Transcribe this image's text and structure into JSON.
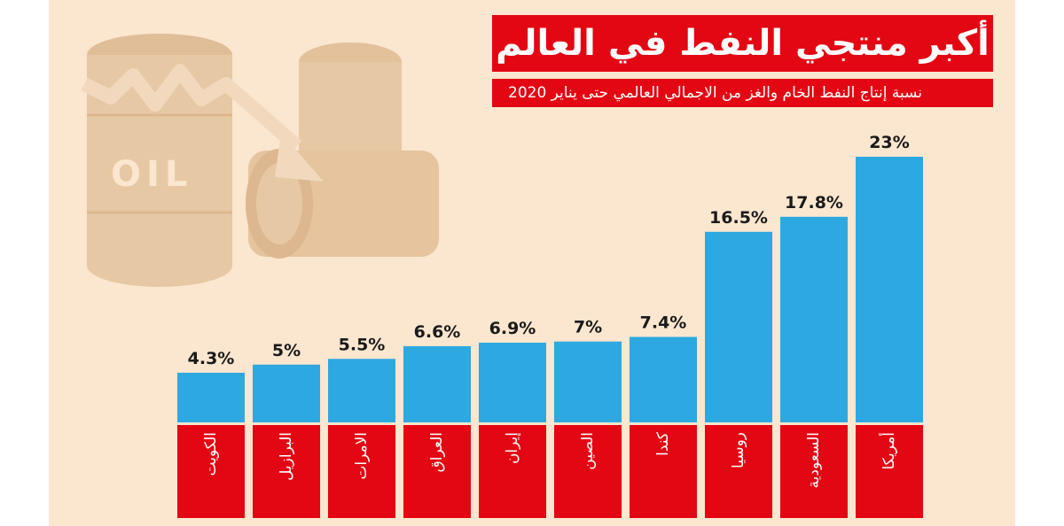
{
  "title": "أكبر منتجي النفط في العالم",
  "subtitle": "نسبة إنتاج النفط الخام والغز من الاجمالي العالمي حتى يناير 2020",
  "decor": {
    "barrel_label": "OIL"
  },
  "colors": {
    "bar": "#2ea8e0",
    "label_box": "#e30613",
    "background": "#fbe6cf",
    "decor": "#e7c8a4"
  },
  "chart_data": {
    "type": "bar",
    "categories": [
      "الكويت",
      "البرازيل",
      "الامرات",
      "العراق",
      "إيران",
      "الصين",
      "كندا",
      "روسيا",
      "السعودية",
      "أمريكا"
    ],
    "values": [
      4.3,
      5,
      5.5,
      6.6,
      6.9,
      7,
      7.4,
      16.5,
      17.8,
      23
    ],
    "value_labels": [
      "4.3%",
      "5%",
      "5.5%",
      "6.6%",
      "6.9%",
      "7%",
      "7.4%",
      "16.5%",
      "17.8%",
      "23%"
    ],
    "title": "أكبر منتجي النفط في العالم",
    "subtitle": "نسبة إنتاج النفط الخام والغز من الاجمالي العالمي حتى يناير 2020",
    "ylim": [
      0,
      23
    ],
    "grid": false,
    "legend": "none"
  }
}
